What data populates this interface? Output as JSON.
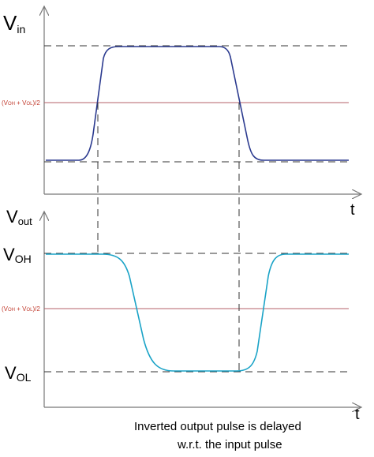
{
  "labels": {
    "vin_main": "V",
    "vin_sub": "in",
    "vout_main": "V",
    "vout_sub": "out",
    "voh_main": "V",
    "voh_sub": "OH",
    "vol_main": "V",
    "vol_sub": "OL",
    "t_top": "t",
    "t_bottom": "t",
    "mid_top_prefix": "(V",
    "mid_top_oh": "OH",
    "mid_top_plus": " + V",
    "mid_top_ol": "OL",
    "mid_top_suffix": ")/2",
    "mid_bottom_prefix": "(V",
    "mid_bottom_oh": "OH",
    "mid_bottom_plus": " + V",
    "mid_bottom_ol": "OL",
    "mid_bottom_suffix": ")/2"
  },
  "caption": {
    "line1": "Inverted output pulse is delayed",
    "line2": "w.r.t. the input pulse"
  },
  "colors": {
    "input_trace": "#2b3a8f",
    "output_trace": "#1aa3c7",
    "midline": "#b5626a",
    "dashed": "#333333",
    "axis": "#777777"
  }
}
